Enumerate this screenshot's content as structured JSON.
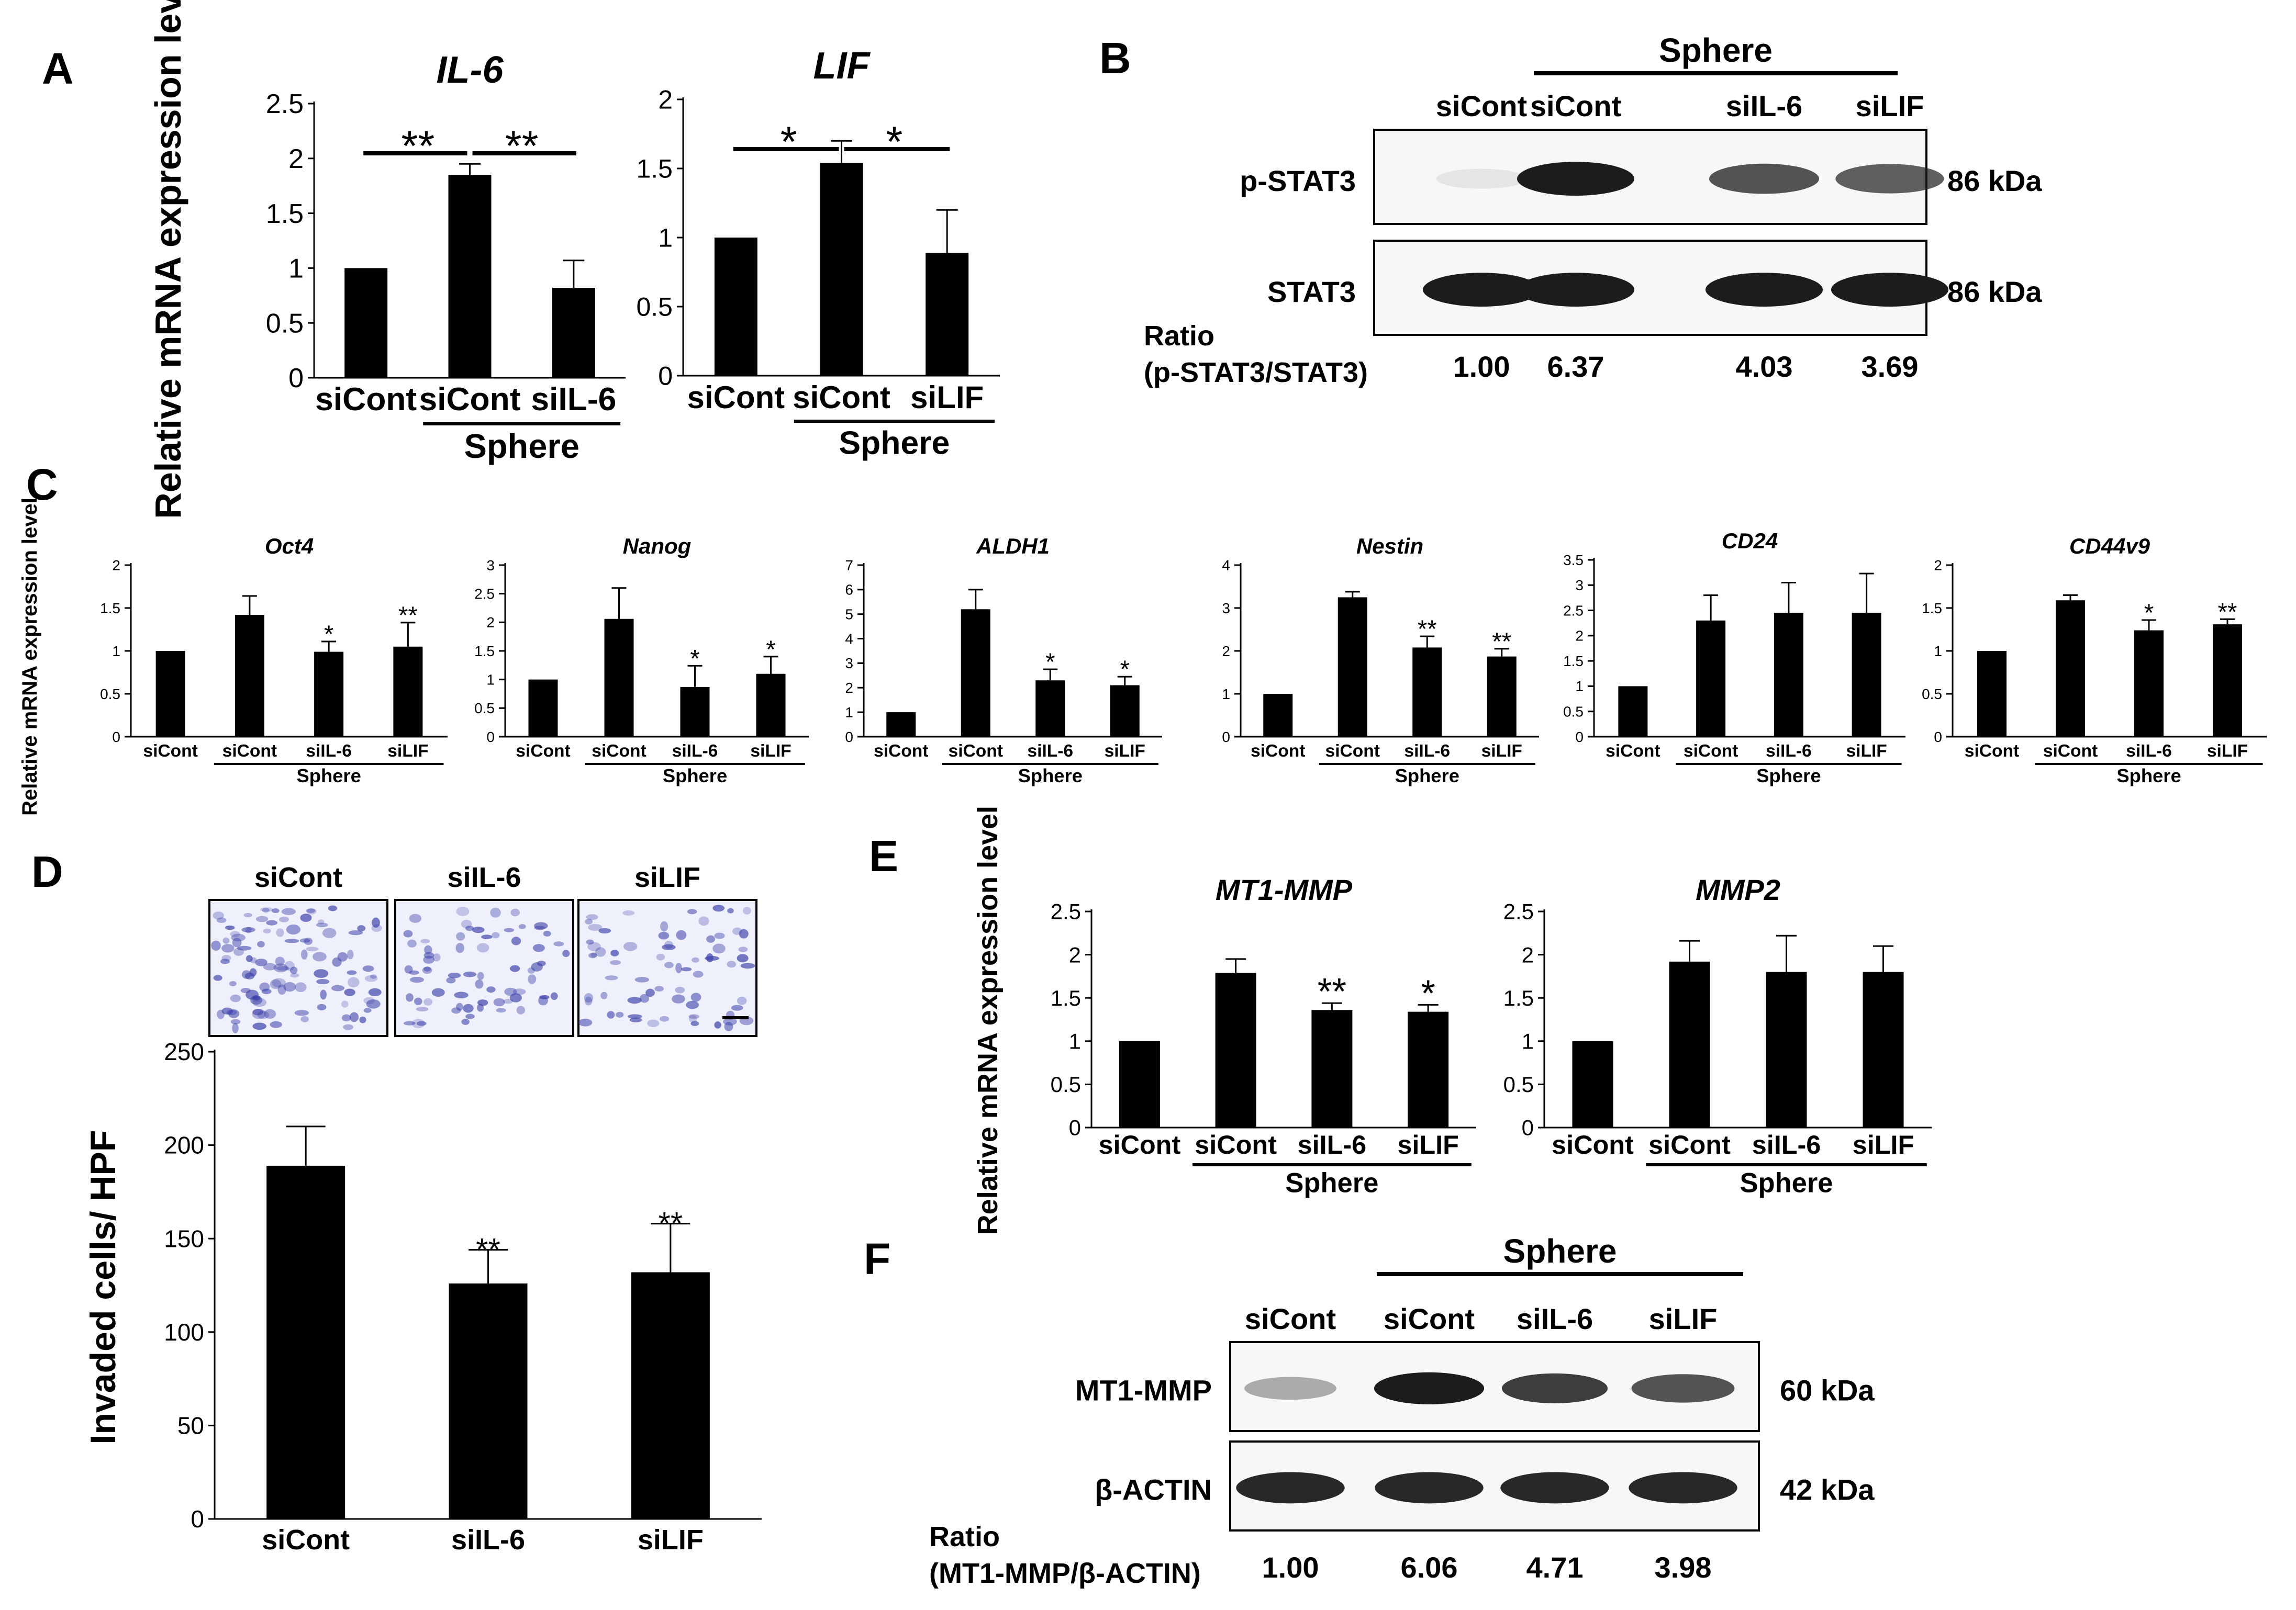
{
  "colors": {
    "bar": "#000000",
    "axis": "#000000",
    "text": "#000000",
    "blot_bg": "#f7f7f7",
    "blot_band": "#1c1c1c",
    "stain": "#3b3fa8"
  },
  "panels": {
    "A": "A",
    "B": "B",
    "C": "C",
    "D": "D",
    "E": "E",
    "F": "F"
  },
  "chart_data": [
    {
      "id": "A1",
      "type": "bar",
      "title": "IL-6",
      "ylabel": "Relative mRNA expression level",
      "categories": [
        "siCont",
        "siCont",
        "siIL-6"
      ],
      "values": [
        1.0,
        1.85,
        0.82
      ],
      "errors": [
        0.01,
        0.1,
        0.25
      ],
      "ylim": [
        0,
        2.5
      ],
      "yticks": [
        "0",
        "0.5",
        "1",
        "1.5",
        "2",
        "2.5"
      ],
      "group_label": "Sphere",
      "group_start": 1,
      "significance": [
        {
          "from": 0,
          "to": 1,
          "label": "**"
        },
        {
          "from": 1,
          "to": 2,
          "label": "**"
        }
      ]
    },
    {
      "id": "A2",
      "type": "bar",
      "title": "LIF",
      "ylabel": "",
      "categories": [
        "siCont",
        "siCont",
        "siLIF"
      ],
      "values": [
        1.0,
        1.54,
        0.89
      ],
      "errors": [
        0.01,
        0.16,
        0.31
      ],
      "ylim": [
        0,
        2
      ],
      "yticks": [
        "0",
        "0.5",
        "1",
        "1.5",
        "2"
      ],
      "group_label": "Sphere",
      "group_start": 1,
      "significance": [
        {
          "from": 0,
          "to": 1,
          "label": "*"
        },
        {
          "from": 1,
          "to": 2,
          "label": "*"
        }
      ]
    },
    {
      "id": "C1",
      "type": "bar",
      "title": "Oct4",
      "ylabel": "Relative mRNA expression level",
      "categories": [
        "siCont",
        "siCont",
        "siIL-6",
        "siLIF"
      ],
      "values": [
        1.0,
        1.42,
        0.99,
        1.05
      ],
      "errors": [
        0.01,
        0.22,
        0.12,
        0.28
      ],
      "ylim": [
        0,
        2
      ],
      "yticks": [
        "0",
        "0.5",
        "1",
        "1.5",
        "2"
      ],
      "group_label": "Sphere",
      "group_start": 1,
      "stars": [
        "",
        "",
        "*",
        "**"
      ]
    },
    {
      "id": "C2",
      "type": "bar",
      "title": "Nanog",
      "ylabel": "",
      "categories": [
        "siCont",
        "siCont",
        "siIL-6",
        "siLIF"
      ],
      "values": [
        1.0,
        2.06,
        0.87,
        1.1
      ],
      "errors": [
        0.01,
        0.54,
        0.37,
        0.3
      ],
      "ylim": [
        0,
        3
      ],
      "yticks": [
        "0",
        "0.5",
        "1",
        "1.5",
        "2",
        "2.5",
        "3"
      ],
      "group_label": "Sphere",
      "group_start": 1,
      "stars": [
        "",
        "",
        "*",
        "*"
      ]
    },
    {
      "id": "C3",
      "type": "bar",
      "title": "ALDH1",
      "ylabel": "",
      "categories": [
        "siCont",
        "siCont",
        "siIL-6",
        "siLIF"
      ],
      "values": [
        1.0,
        5.2,
        2.3,
        2.1
      ],
      "errors": [
        0.02,
        0.8,
        0.45,
        0.35
      ],
      "ylim": [
        0,
        7
      ],
      "yticks": [
        "0",
        "1",
        "2",
        "3",
        "4",
        "5",
        "6",
        "7"
      ],
      "group_label": "Sphere",
      "group_start": 1,
      "stars": [
        "",
        "",
        "*",
        "*"
      ]
    },
    {
      "id": "C4",
      "type": "bar",
      "title": "Nestin",
      "ylabel": "",
      "categories": [
        "siCont",
        "siCont",
        "siIL-6",
        "siLIF"
      ],
      "values": [
        1.0,
        3.25,
        2.08,
        1.87
      ],
      "errors": [
        0.01,
        0.13,
        0.26,
        0.18
      ],
      "ylim": [
        0,
        4
      ],
      "yticks": [
        "0",
        "1",
        "2",
        "3",
        "4"
      ],
      "group_label": "Sphere",
      "group_start": 1,
      "stars": [
        "",
        "",
        "**",
        "**"
      ]
    },
    {
      "id": "C5",
      "type": "bar",
      "title": "CD24",
      "ylabel": "",
      "categories": [
        "siCont",
        "siCont",
        "siIL-6",
        "siLIF"
      ],
      "values": [
        1.0,
        2.3,
        2.45,
        2.45
      ],
      "errors": [
        0.01,
        0.5,
        0.6,
        0.78
      ],
      "ylim": [
        0,
        3.5
      ],
      "yticks": [
        "0",
        "0.5",
        "1",
        "1.5",
        "2",
        "2.5",
        "3",
        "3.5"
      ],
      "group_label": "Sphere",
      "group_start": 1,
      "stars": [
        "",
        "",
        "",
        ""
      ]
    },
    {
      "id": "C6",
      "type": "bar",
      "title": "CD44v9",
      "ylabel": "",
      "categories": [
        "siCont",
        "siCont",
        "siIL-6",
        "siLIF"
      ],
      "values": [
        1.0,
        1.59,
        1.24,
        1.31
      ],
      "errors": [
        0.01,
        0.06,
        0.12,
        0.06
      ],
      "ylim": [
        0,
        2
      ],
      "yticks": [
        "0",
        "0.5",
        "1",
        "1.5",
        "2"
      ],
      "group_label": "Sphere",
      "group_start": 1,
      "stars": [
        "",
        "",
        "*",
        "**"
      ]
    },
    {
      "id": "D1",
      "type": "bar",
      "title": "",
      "ylabel": "Invaded cells/ HPF",
      "categories": [
        "siCont",
        "siIL-6",
        "siLIF"
      ],
      "values": [
        189,
        126,
        132
      ],
      "errors": [
        21,
        18,
        26
      ],
      "ylim": [
        0,
        250
      ],
      "yticks": [
        "0",
        "50",
        "100",
        "150",
        "200",
        "250"
      ],
      "stars": [
        "",
        "**",
        "**"
      ]
    },
    {
      "id": "E1",
      "type": "bar",
      "title": "MT1-MMP",
      "ylabel": "Relative mRNA expression level",
      "categories": [
        "siCont",
        "siCont",
        "siIL-6",
        "siLIF"
      ],
      "values": [
        1.0,
        1.79,
        1.36,
        1.34
      ],
      "errors": [
        0.01,
        0.16,
        0.08,
        0.08
      ],
      "ylim": [
        0,
        2.5
      ],
      "yticks": [
        "0",
        "0.5",
        "1",
        "1.5",
        "2",
        "2.5"
      ],
      "group_label": "Sphere",
      "group_start": 1,
      "stars": [
        "",
        "",
        "**",
        "*"
      ]
    },
    {
      "id": "E2",
      "type": "bar",
      "title": "MMP2",
      "ylabel": "",
      "categories": [
        "siCont",
        "siCont",
        "siIL-6",
        "siLIF"
      ],
      "values": [
        1.0,
        1.92,
        1.8,
        1.8
      ],
      "errors": [
        0.01,
        0.24,
        0.42,
        0.3
      ],
      "ylim": [
        0,
        2.5
      ],
      "yticks": [
        "0",
        "0.5",
        "1",
        "1.5",
        "2",
        "2.5"
      ],
      "group_label": "Sphere",
      "group_start": 1,
      "stars": [
        "",
        "",
        "",
        ""
      ]
    }
  ],
  "blot_B": {
    "sphere_label": "Sphere",
    "lanes": [
      "siCont",
      "siCont",
      "siIL-6",
      "siLIF"
    ],
    "rows": [
      {
        "label": "p-STAT3",
        "size": "86 kDa",
        "intensity": [
          0.08,
          1.0,
          0.75,
          0.7
        ]
      },
      {
        "label": "STAT3",
        "size": "86 kDa",
        "intensity": [
          1.0,
          1.0,
          1.0,
          1.0
        ]
      }
    ],
    "ratio_label_1": "Ratio",
    "ratio_label_2": "(p-STAT3/STAT3)",
    "ratios": [
      "1.00",
      "6.37",
      "4.03",
      "3.69"
    ]
  },
  "blot_F": {
    "sphere_label": "Sphere",
    "lanes": [
      "siCont",
      "siCont",
      "siIL-6",
      "siLIF"
    ],
    "rows": [
      {
        "label": "MT1-MMP",
        "size": "60 kDa",
        "intensity": [
          0.35,
          1.0,
          0.85,
          0.75
        ]
      },
      {
        "label": "β-ACTIN",
        "size": "42 kDa",
        "intensity": [
          0.95,
          0.95,
          0.95,
          0.95
        ]
      }
    ],
    "ratio_label_1": "Ratio",
    "ratio_label_2": "(MT1-MMP/β-ACTIN)",
    "ratios": [
      "1.00",
      "6.06",
      "4.71",
      "3.98"
    ]
  },
  "micrographs": {
    "labels": [
      "siCont",
      "siIL-6",
      "siLIF"
    ]
  }
}
